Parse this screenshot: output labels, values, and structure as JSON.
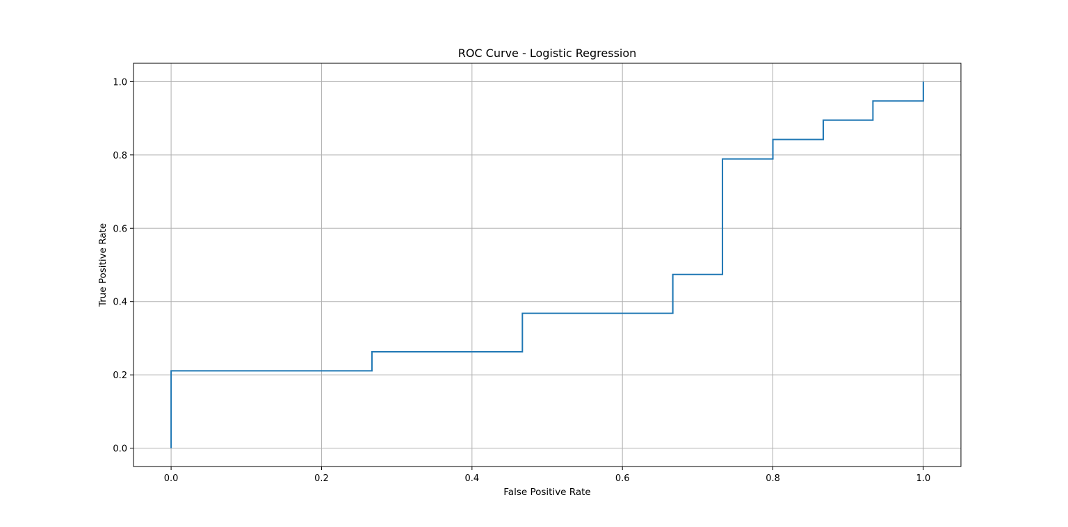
{
  "chart_data": {
    "type": "line",
    "title": "ROC Curve - Logistic Regression",
    "xlabel": "False Positive Rate",
    "ylabel": "True Positive Rate",
    "xlim": [
      -0.05,
      1.05
    ],
    "ylim": [
      -0.05,
      1.05
    ],
    "xticks": [
      0.0,
      0.2,
      0.4,
      0.6,
      0.8,
      1.0
    ],
    "yticks": [
      0.0,
      0.2,
      0.4,
      0.6,
      0.8,
      1.0
    ],
    "xtick_labels": [
      "0.0",
      "0.2",
      "0.4",
      "0.6",
      "0.8",
      "1.0"
    ],
    "ytick_labels": [
      "0.0",
      "0.2",
      "0.4",
      "0.6",
      "0.8",
      "1.0"
    ],
    "grid": true,
    "line_color": "#1f77b4",
    "series": [
      {
        "x": [
          0.0,
          0.0,
          0.267,
          0.267,
          0.467,
          0.467,
          0.667,
          0.667,
          0.733,
          0.733,
          0.8,
          0.8,
          0.867,
          0.867,
          0.933,
          0.933,
          1.0,
          1.0
        ],
        "y": [
          0.0,
          0.211,
          0.211,
          0.263,
          0.263,
          0.368,
          0.368,
          0.474,
          0.474,
          0.789,
          0.789,
          0.842,
          0.842,
          0.895,
          0.895,
          0.947,
          0.947,
          1.0
        ]
      }
    ]
  }
}
